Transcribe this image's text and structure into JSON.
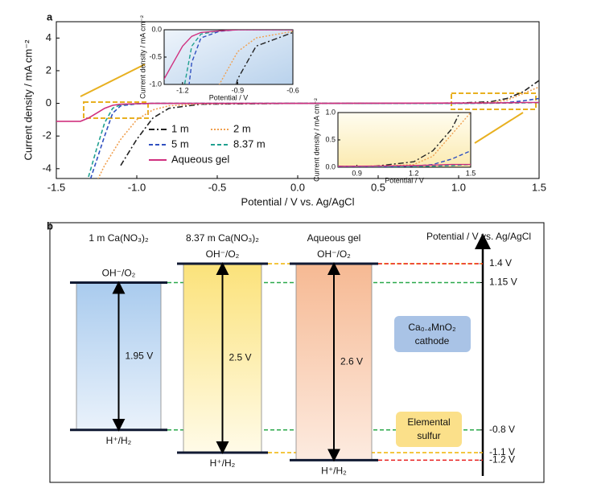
{
  "chart_data": {
    "type": "line",
    "panel": "a",
    "xlabel": "Potential / V vs. Ag/AgCl",
    "ylabel": "Current density / mA cm⁻²",
    "xlim": [
      -1.5,
      1.5
    ],
    "ylim": [
      -4.6,
      5
    ],
    "xticks": [
      -1.5,
      {
        "value": -1,
        "label": "-1.0"
      },
      -0.5,
      {
        "value": 0,
        "label": "0.0"
      },
      0.5,
      {
        "value": 1,
        "label": "1.0"
      },
      1.5
    ],
    "yticks": [
      -4,
      -2,
      0,
      2,
      4
    ],
    "x": [
      -1.5,
      -1.35,
      -1.3,
      -1.25,
      -1.2,
      -1.15,
      -1.1,
      -1.0,
      -0.9,
      -0.8,
      -0.6,
      0,
      1.0,
      1.2,
      1.3,
      1.4,
      1.5
    ],
    "series": [
      {
        "name": "1 m",
        "color": "#222222",
        "dash": "dash-dot",
        "values": [
          null,
          null,
          null,
          null,
          null,
          null,
          -3.8,
          -2.2,
          -0.9,
          -0.3,
          -0.05,
          0,
          0.02,
          0.1,
          0.3,
          0.7,
          1.4
        ]
      },
      {
        "name": "2 m",
        "color": "#f0a050",
        "dash": "dotted",
        "values": [
          null,
          null,
          null,
          -4.8,
          -3.8,
          -3.0,
          -2.2,
          -1.0,
          -0.4,
          -0.15,
          -0.03,
          0,
          0.01,
          0.05,
          0.2,
          0.6,
          1.0
        ]
      },
      {
        "name": "5 m",
        "color": "#3050c0",
        "dash": "dashed",
        "values": [
          null,
          null,
          -5,
          -3.5,
          -2.0,
          -0.6,
          -0.15,
          -0.03,
          0,
          0,
          0,
          0,
          0,
          0.02,
          0.05,
          0.15,
          0.3
        ]
      },
      {
        "name": "8.37 m",
        "color": "#20a090",
        "dash": "dashed",
        "values": [
          null,
          null,
          -4.5,
          -2.8,
          -1.2,
          -0.3,
          -0.08,
          -0.02,
          0,
          0,
          0,
          0,
          0,
          0.01,
          0.02,
          0.03,
          0.05
        ]
      },
      {
        "name": "Aqueous gel",
        "color": "#d0307f",
        "dash": "solid",
        "values": [
          -1.1,
          -1.1,
          -0.9,
          -0.6,
          -0.3,
          -0.12,
          -0.05,
          -0.02,
          0,
          0,
          0,
          0,
          0.02,
          0.03,
          0.04,
          0.05,
          0.05
        ]
      }
    ],
    "insets": [
      {
        "xlabel": "Potential / V",
        "ylabel": "Current density / mA cm⁻²",
        "xlim": [
          -1.3,
          -0.6
        ],
        "ylim": [
          -1,
          0
        ],
        "xticks": [
          -1.2,
          -0.9,
          -0.6
        ],
        "yticks": [
          {
            "value": 0,
            "label": "0.0"
          },
          -0.5,
          {
            "value": -1,
            "label": "-1.0"
          }
        ]
      },
      {
        "xlabel": "Potential / V",
        "ylabel": "Current density / mA cm⁻²",
        "xlim": [
          0.8,
          1.5
        ],
        "ylim": [
          0,
          1
        ],
        "xticks": [
          0.9,
          1.2,
          1.5
        ],
        "yticks": [
          {
            "value": 0,
            "label": "0.0"
          },
          0.5,
          {
            "value": 1,
            "label": "1.0"
          }
        ]
      }
    ]
  },
  "diagram": {
    "panel": "b",
    "axis_title": "Potential / V vs. Ag/AgCl",
    "levels": [
      {
        "value": 1.4,
        "label": "1.4 V"
      },
      {
        "value": 1.15,
        "label": "1.15 V"
      },
      {
        "value": -0.8,
        "label": "-0.8 V"
      },
      {
        "value": -1.1,
        "label": "-1.1 V"
      },
      {
        "value": -1.2,
        "label": "-1.2 V"
      }
    ],
    "columns": [
      {
        "title": "1 m Ca(NO₃)₂",
        "top_label": "OH⁻/O₂",
        "bottom_label": "H⁺/H₂",
        "window": "1.95 V",
        "upper": 1.15,
        "lower": -0.8,
        "color": "#2aa84a"
      },
      {
        "title": "8.37 m Ca(NO₃)₂",
        "top_label": "OH⁻/O₂",
        "bottom_label": "H⁺/H₂",
        "window": "2.5 V",
        "upper": 1.4,
        "lower": -1.1,
        "color": "#f0b400"
      },
      {
        "title": "Aqueous gel",
        "top_label": "OH⁻/O₂",
        "bottom_label": "H⁺/H₂",
        "window": "2.6 V",
        "upper": 1.4,
        "lower": -1.2,
        "color": "#e82020"
      }
    ],
    "cathode": [
      "Ca₀.₄MnO₂",
      "cathode"
    ],
    "anode": [
      "Elemental",
      "sulfur"
    ]
  }
}
